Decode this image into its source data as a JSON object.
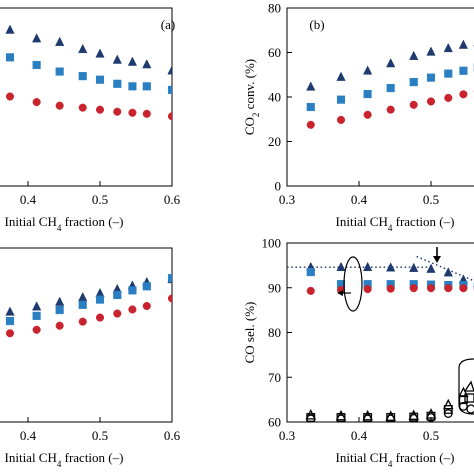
{
  "chart_data": [
    {
      "id": "a",
      "type": "scatter",
      "panel_label": "(a)",
      "xlabel": "Initial CH4 fraction  (–)",
      "xlabel_sub": "4",
      "ylabel": "",
      "xlim": [
        0.3,
        0.6
      ],
      "ylim": [
        60,
        95
      ],
      "xticks": [
        "0.4",
        "0.5",
        "0.6"
      ],
      "yticks": [],
      "series": [
        {
          "marker": "triangle",
          "color": "#1f3a6e",
          "x": [
            0.333,
            0.375,
            0.412,
            0.444,
            0.476,
            0.5,
            0.524,
            0.545,
            0.565,
            0.6
          ],
          "y": [
            92.5,
            90.7,
            89.0,
            88.3,
            86.9,
            86.0,
            84.8,
            84.4,
            83.9,
            82.7
          ]
        },
        {
          "marker": "square",
          "color": "#2a7fc2",
          "x": [
            0.333,
            0.375,
            0.412,
            0.444,
            0.476,
            0.5,
            0.524,
            0.545,
            0.565,
            0.6
          ],
          "y": [
            86.5,
            85.3,
            83.8,
            82.5,
            81.6,
            80.9,
            80.1,
            79.6,
            79.6,
            78.9
          ]
        },
        {
          "marker": "circle",
          "color": "#c9242e",
          "x": [
            0.333,
            0.375,
            0.412,
            0.444,
            0.476,
            0.5,
            0.524,
            0.545,
            0.565,
            0.6
          ],
          "y": [
            78.5,
            77.6,
            76.5,
            75.8,
            75.4,
            75.0,
            74.6,
            74.4,
            74.2,
            73.7
          ]
        }
      ]
    },
    {
      "id": "b",
      "type": "scatter",
      "panel_label": "(b)",
      "xlabel": "Initial CH4 fraction  (–)",
      "xlabel_sub": "4",
      "ylabel": "CO2 conv.  (%)",
      "ylabel_sub": "2",
      "xlim": [
        0.3,
        0.6
      ],
      "ylim": [
        0,
        80
      ],
      "xticks": [
        "0.3",
        "0.4",
        "0.5"
      ],
      "yticks": [
        "0",
        "20",
        "40",
        "60",
        "80"
      ],
      "series": [
        {
          "marker": "triangle",
          "color": "#1f3a6e",
          "x": [
            0.333,
            0.375,
            0.412,
            0.444,
            0.476,
            0.5,
            0.524,
            0.545,
            0.565
          ],
          "y": [
            44.6,
            49.0,
            51.8,
            55.1,
            58.4,
            60.3,
            61.9,
            63.4,
            64.5
          ]
        },
        {
          "marker": "square",
          "color": "#2a7fc2",
          "x": [
            0.333,
            0.375,
            0.412,
            0.444,
            0.476,
            0.5,
            0.524,
            0.545,
            0.565
          ],
          "y": [
            35.5,
            38.8,
            41.3,
            44.0,
            46.7,
            48.7,
            50.5,
            51.8,
            53.2
          ]
        },
        {
          "marker": "circle",
          "color": "#c9242e",
          "x": [
            0.333,
            0.375,
            0.412,
            0.444,
            0.476,
            0.5,
            0.524,
            0.545,
            0.565
          ],
          "y": [
            27.5,
            29.7,
            32.0,
            34.3,
            36.5,
            38.0,
            39.6,
            41.2,
            42.5
          ]
        }
      ]
    },
    {
      "id": "c",
      "type": "scatter",
      "panel_label": "",
      "xlabel": "Initial CH4 fraction  (–)",
      "xlabel_sub": "4",
      "ylabel": "",
      "xlim": [
        0.3,
        0.6
      ],
      "ylim": [
        70,
        100
      ],
      "xticks": [
        "0.4",
        "0.5",
        "0.6"
      ],
      "yticks": [],
      "series": [
        {
          "marker": "triangle",
          "color": "#1f3a6e",
          "x": [
            0.333,
            0.375,
            0.412,
            0.444,
            0.476,
            0.5,
            0.524,
            0.545,
            0.565,
            0.6
          ],
          "y": [
            88.4,
            89.0,
            89.9,
            90.7,
            91.5,
            92.2,
            92.9,
            93.5,
            94.1,
            94.6
          ]
        },
        {
          "marker": "square",
          "color": "#2a7fc2",
          "x": [
            0.333,
            0.375,
            0.412,
            0.444,
            0.476,
            0.5,
            0.524,
            0.545,
            0.565,
            0.6
          ],
          "y": [
            86.5,
            87.4,
            88.3,
            89.3,
            90.2,
            91.1,
            91.9,
            92.7,
            93.4,
            94.8
          ]
        },
        {
          "marker": "circle",
          "color": "#c9242e",
          "x": [
            0.333,
            0.375,
            0.412,
            0.444,
            0.476,
            0.5,
            0.524,
            0.545,
            0.565,
            0.6
          ],
          "y": [
            84.8,
            85.3,
            85.9,
            86.6,
            87.3,
            88.0,
            88.7,
            89.4,
            90.0,
            91.3
          ]
        }
      ]
    },
    {
      "id": "d",
      "type": "scatter",
      "panel_label": "",
      "xlabel": "Initial CH4 fraction  (–)",
      "xlabel_sub": "4",
      "ylabel": "CO sel.  (%)",
      "xlim": [
        0.3,
        0.6
      ],
      "ylim": [
        60,
        100
      ],
      "xticks": [
        "0.3",
        "0.4",
        "0.5"
      ],
      "yticks": [
        "60",
        "70",
        "80",
        "90",
        "100"
      ],
      "series": [
        {
          "marker": "triangle",
          "color": "#1f3a6e",
          "x": [
            0.333,
            0.375,
            0.412,
            0.444,
            0.476,
            0.5,
            0.524,
            0.545,
            0.565
          ],
          "y": [
            94.6,
            94.6,
            94.6,
            94.5,
            94.4,
            94.2,
            93.4,
            91.8,
            91.0
          ]
        },
        {
          "marker": "square",
          "color": "#2a7fc2",
          "x": [
            0.333,
            0.375,
            0.412,
            0.444,
            0.476,
            0.5,
            0.524,
            0.545,
            0.565
          ],
          "y": [
            93.5,
            90.8,
            90.8,
            90.8,
            90.8,
            90.7,
            90.6,
            90.6,
            90.3
          ]
        },
        {
          "marker": "circle",
          "color": "#c9242e",
          "x": [
            0.333,
            0.375,
            0.412,
            0.444,
            0.476,
            0.5,
            0.524,
            0.545,
            0.565
          ],
          "y": [
            89.3,
            89.5,
            89.7,
            89.8,
            89.9,
            89.9,
            89.9,
            89.9,
            89.9
          ]
        },
        {
          "marker": "triangle-open",
          "color": "#000000",
          "x": [
            0.333,
            0.375,
            0.412,
            0.444,
            0.476,
            0.5,
            0.524,
            0.545
          ],
          "y": [
            61.5,
            61.3,
            61.3,
            61.2,
            61.4,
            61.7,
            63.8,
            66.5
          ]
        },
        {
          "marker": "square-open",
          "color": "#000000",
          "x": [
            0.333,
            0.375,
            0.412,
            0.444,
            0.476,
            0.5,
            0.524,
            0.545
          ],
          "y": [
            61.0,
            61.0,
            61.0,
            61.0,
            61.1,
            61.3,
            62.8,
            65.0
          ]
        },
        {
          "marker": "circle-open",
          "color": "#000000",
          "x": [
            0.333,
            0.375,
            0.412,
            0.444,
            0.476,
            0.5,
            0.524,
            0.545
          ],
          "y": [
            60.7,
            60.7,
            60.7,
            60.7,
            60.8,
            61.0,
            61.9,
            63.5
          ]
        }
      ],
      "trend_lines": [
        {
          "x": [
            0.3,
            0.495
          ],
          "y": [
            94.6,
            94.6
          ],
          "color": "#1f3a6e"
        },
        {
          "x": [
            0.48,
            0.575
          ],
          "y": [
            97.0,
            90.5
          ],
          "color": "#1f3a6e"
        }
      ]
    }
  ]
}
